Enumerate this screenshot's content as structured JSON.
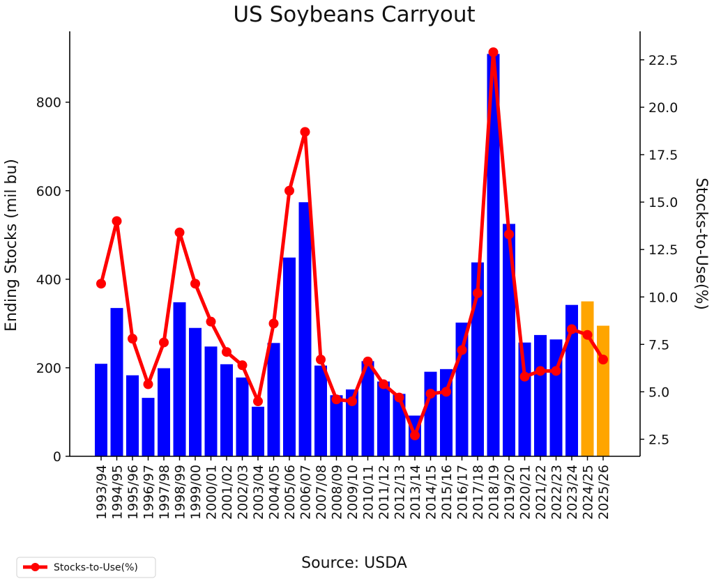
{
  "chart_data": {
    "type": "bar",
    "title": "US Soybeans Carryout",
    "xlabel": "",
    "ylabel": "Ending Stocks (mil bu)",
    "y2label": "Stocks-to-Use(%)",
    "source": "Source: USDA",
    "ylim": [
      0,
      960
    ],
    "y2lim": [
      1.6,
      24
    ],
    "yticks": [
      0,
      200,
      400,
      600,
      800
    ],
    "y2ticks": [
      "2.5",
      "5.0",
      "7.5",
      "10.0",
      "12.5",
      "15.0",
      "17.5",
      "20.0",
      "22.5"
    ],
    "categories": [
      "1993/94",
      "1994/95",
      "1995/96",
      "1996/97",
      "1997/98",
      "1998/99",
      "1999/00",
      "2000/01",
      "2001/02",
      "2002/03",
      "2003/04",
      "2004/05",
      "2005/06",
      "2006/07",
      "2007/08",
      "2008/09",
      "2009/10",
      "2010/11",
      "2011/12",
      "2012/13",
      "2013/14",
      "2014/15",
      "2015/16",
      "2016/17",
      "2017/18",
      "2018/19",
      "2019/20",
      "2020/21",
      "2021/22",
      "2022/23",
      "2023/24",
      "2024/25",
      "2025/26"
    ],
    "series": [
      {
        "kind": "bar",
        "values": [
          209,
          335,
          183,
          132,
          199,
          348,
          290,
          248,
          208,
          178,
          112,
          256,
          449,
          574,
          205,
          138,
          151,
          215,
          169,
          141,
          92,
          191,
          197,
          302,
          438,
          909,
          525,
          257,
          274,
          264,
          342,
          350,
          295
        ],
        "colors": [
          "#0000ff",
          "#0000ff",
          "#0000ff",
          "#0000ff",
          "#0000ff",
          "#0000ff",
          "#0000ff",
          "#0000ff",
          "#0000ff",
          "#0000ff",
          "#0000ff",
          "#0000ff",
          "#0000ff",
          "#0000ff",
          "#0000ff",
          "#0000ff",
          "#0000ff",
          "#0000ff",
          "#0000ff",
          "#0000ff",
          "#0000ff",
          "#0000ff",
          "#0000ff",
          "#0000ff",
          "#0000ff",
          "#0000ff",
          "#0000ff",
          "#0000ff",
          "#0000ff",
          "#0000ff",
          "#0000ff",
          "#ffa500",
          "#ffa500"
        ]
      },
      {
        "kind": "line",
        "axis": "right",
        "name": "Stocks-to-Use(%)",
        "color": "#ff0000",
        "values": [
          10.7,
          14.0,
          7.8,
          5.4,
          7.6,
          13.4,
          10.7,
          8.7,
          7.1,
          6.4,
          4.5,
          8.6,
          15.6,
          18.7,
          6.7,
          4.6,
          4.5,
          6.6,
          5.4,
          4.7,
          2.7,
          4.9,
          5.0,
          7.2,
          10.2,
          22.9,
          13.3,
          5.8,
          6.1,
          6.1,
          8.3,
          8.0,
          6.7
        ]
      }
    ],
    "legend": {
      "position": "bottom-left",
      "label": "Stocks-to-Use(%)"
    },
    "grid": false
  }
}
